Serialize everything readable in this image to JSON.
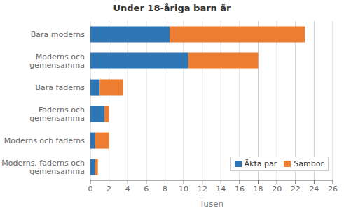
{
  "chart_data": {
    "type": "bar",
    "orientation": "horizontal",
    "stacked": true,
    "title": "Under 18-åriga barn är",
    "xlabel": "Tusen",
    "categories": [
      "Bara moderns",
      "Moderns och\ngemensamma",
      "Bara faderns",
      "Faderns och\ngemensamma",
      "Moderns och faderns",
      "Moderns, faderns och\ngemensamma"
    ],
    "series": [
      {
        "name": "Äkta par",
        "color": "#2E75B6",
        "values": [
          8.5,
          10.5,
          1.0,
          1.5,
          0.5,
          0.5
        ]
      },
      {
        "name": "Sambor",
        "color": "#ED7D31",
        "values": [
          14.5,
          7.5,
          2.5,
          0.5,
          1.5,
          0.3
        ]
      }
    ],
    "xlim": [
      0,
      26
    ],
    "xticks": [
      0,
      2,
      4,
      6,
      8,
      10,
      12,
      14,
      16,
      18,
      20,
      22,
      24,
      26
    ],
    "grid": true,
    "legend": "lower right"
  }
}
